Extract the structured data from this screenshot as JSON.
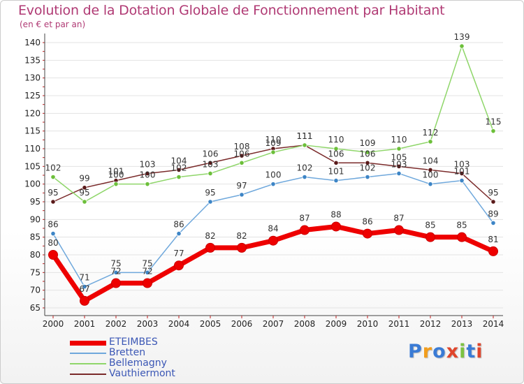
{
  "header": {
    "title": "Evolution de la Dotation Globale de Fonctionnement par Habitant",
    "subtitle": "(en € et par an)"
  },
  "logo": {
    "letters": [
      "P",
      "r",
      "o",
      "x",
      "i",
      "t",
      "i"
    ],
    "colors": [
      "#3a7bd5",
      "#f29d1c",
      "#3a7bd5",
      "#e0452b",
      "#7cc242",
      "#3a7bd5",
      "#e0452b"
    ]
  },
  "chart_data": {
    "type": "line",
    "x": [
      2000,
      2001,
      2002,
      2003,
      2004,
      2005,
      2006,
      2007,
      2008,
      2009,
      2010,
      2011,
      2012,
      2013,
      2014
    ],
    "ylim": [
      65,
      140
    ],
    "yticks": [
      65,
      70,
      75,
      80,
      85,
      90,
      95,
      100,
      105,
      110,
      115,
      120,
      125,
      130,
      135,
      140
    ],
    "grid": "horizontal",
    "legend_position": "bottom-left",
    "series": [
      {
        "name": "Vauthiermont",
        "color": "#7a2a2a",
        "dot": "#5a1a1a",
        "values": [
          95,
          99,
          101,
          103,
          104,
          106,
          108,
          110,
          111,
          106,
          106,
          105,
          104,
          103,
          95
        ]
      },
      {
        "name": "Bellemagny",
        "color": "#8fd66a",
        "dot": "#6cbf3a",
        "values": [
          102,
          95,
          100,
          100,
          102,
          103,
          106,
          109,
          111,
          110,
          109,
          110,
          112,
          139,
          115
        ]
      },
      {
        "name": "Bretten",
        "color": "#6fa8dc",
        "dot": "#3d85c6",
        "values": [
          86,
          71,
          75,
          75,
          86,
          95,
          97,
          100,
          102,
          101,
          102,
          103,
          100,
          101,
          89
        ]
      },
      {
        "name": "ETEIMBES",
        "color": "#ee0000",
        "dot": "#ee0000",
        "values": [
          80,
          67,
          72,
          72,
          77,
          82,
          82,
          84,
          87,
          88,
          86,
          87,
          85,
          85,
          81
        ]
      }
    ],
    "legend_order": [
      "ETEIMBES",
      "Bretten",
      "Bellemagny",
      "Vauthiermont"
    ]
  }
}
